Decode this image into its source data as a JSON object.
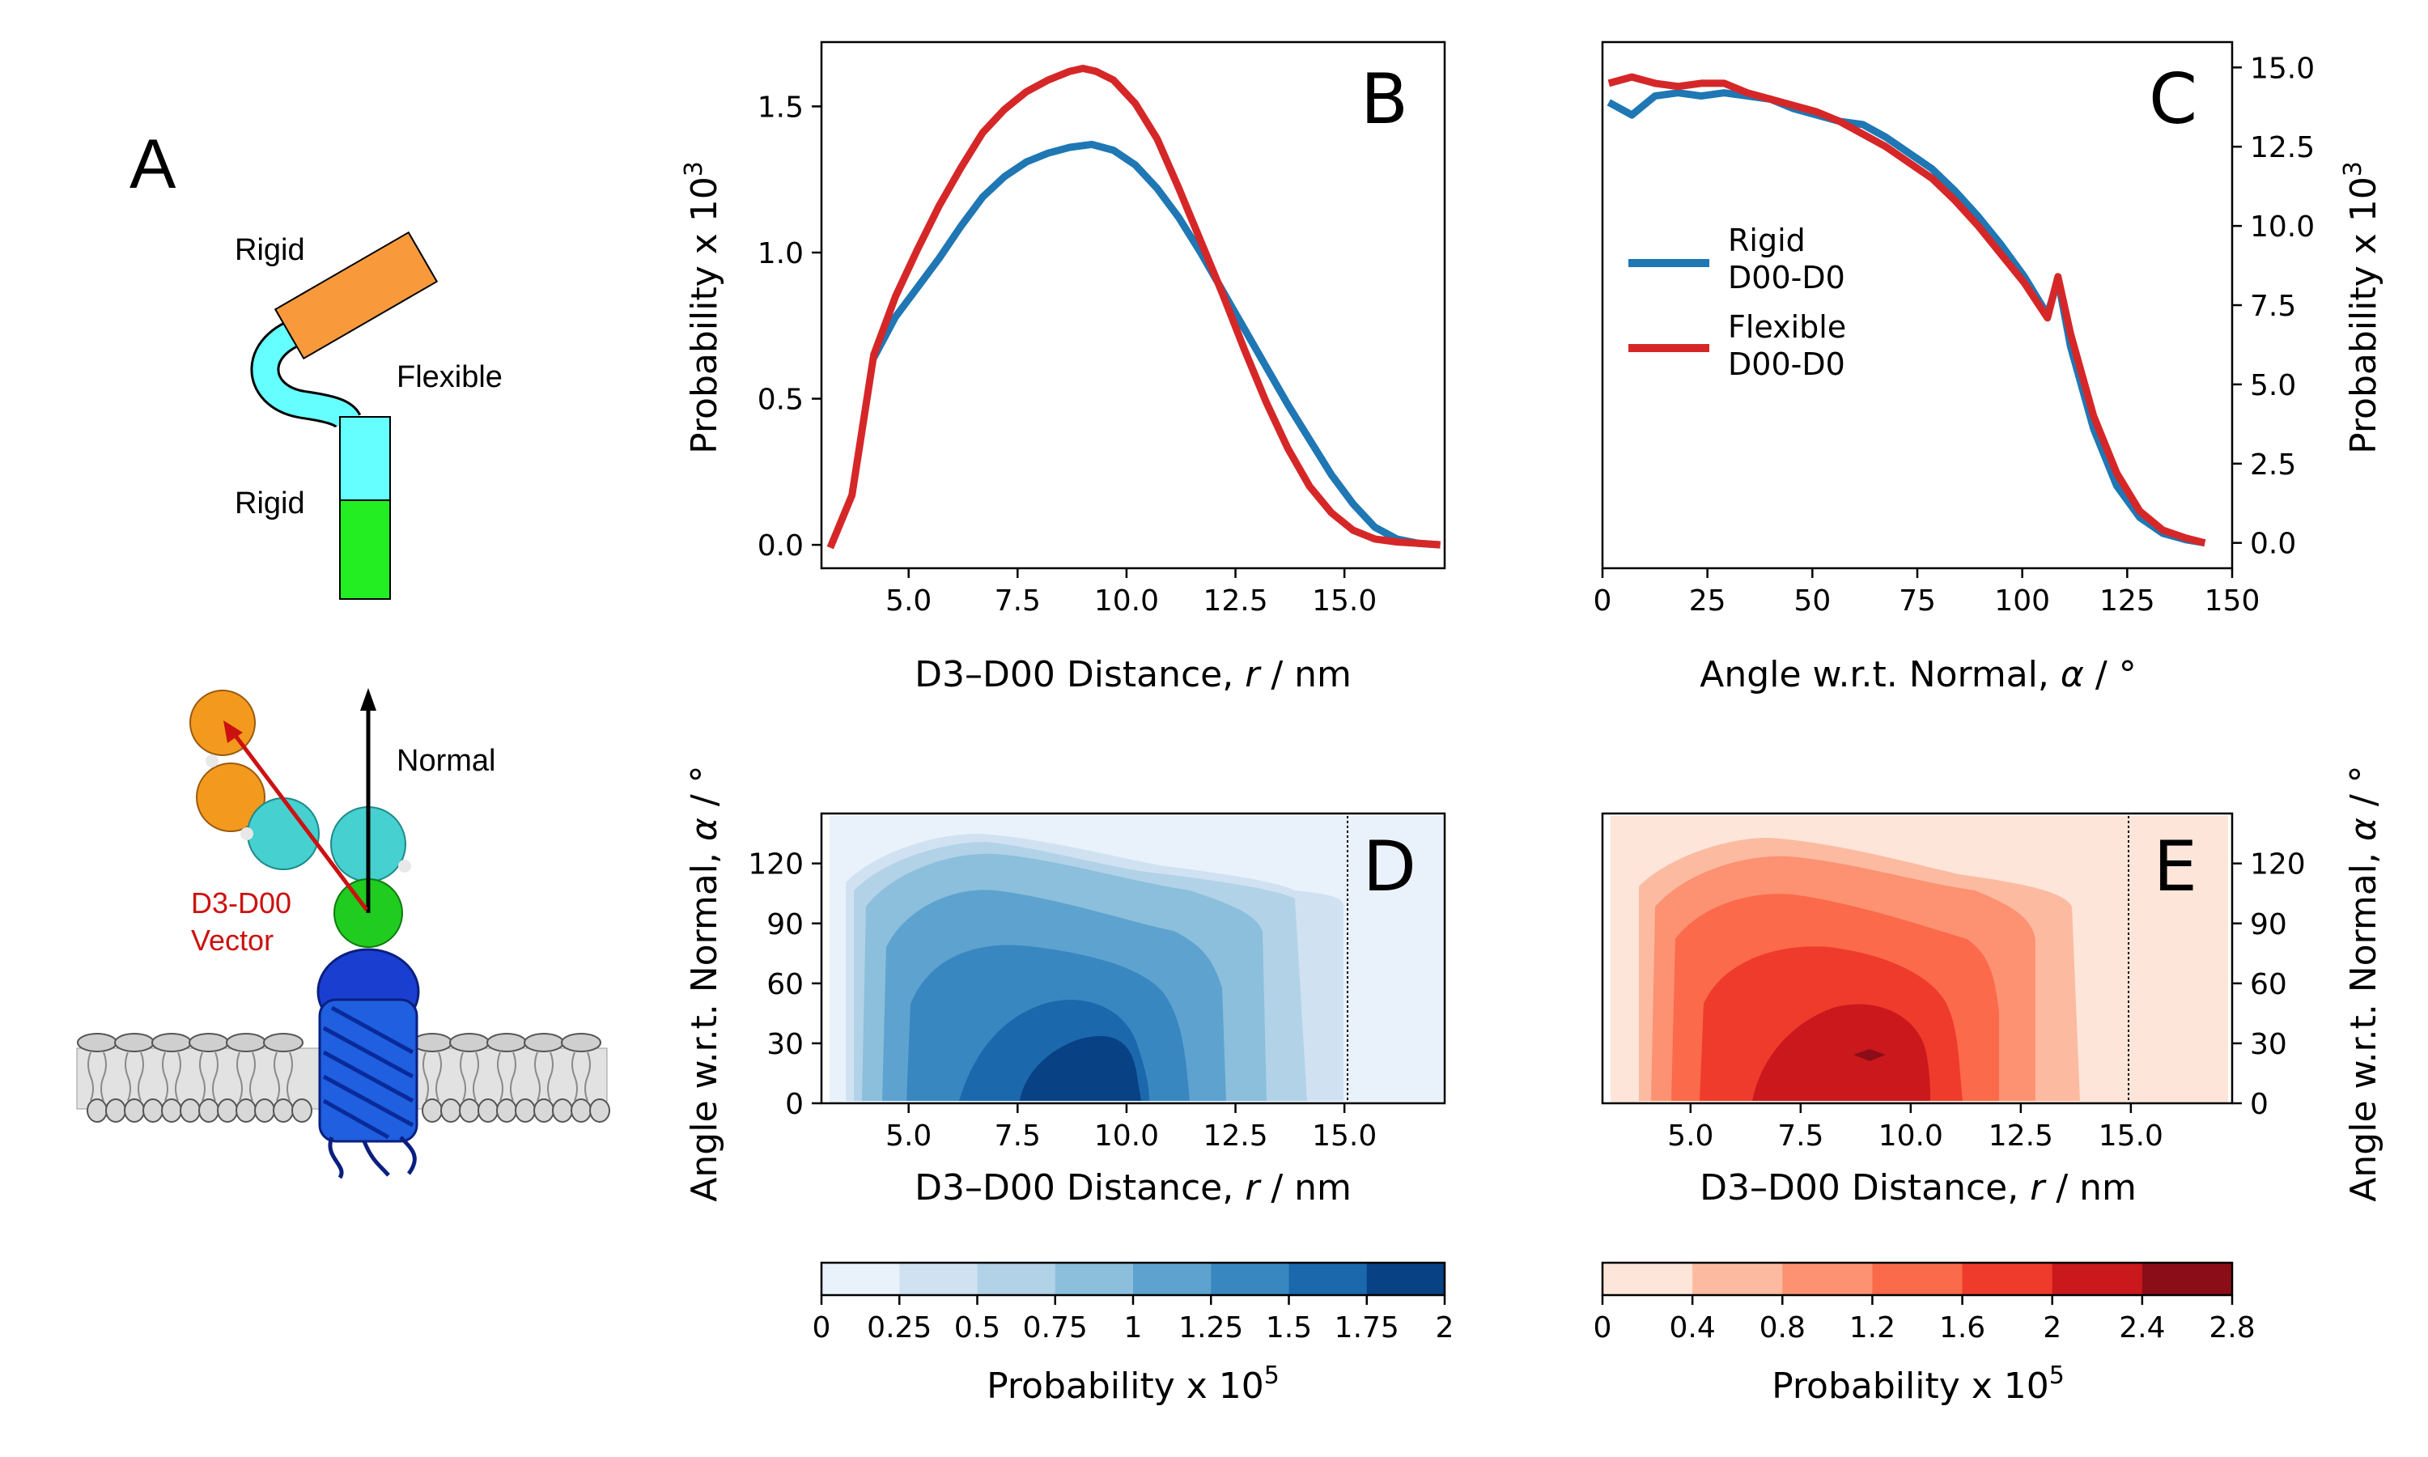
{
  "colors": {
    "rigid": "#1f77b4",
    "flexible": "#d62728",
    "orange": "#f89a3c",
    "cyan": "#66ffff",
    "green": "#22ee22",
    "membrane": "#cfcfcf",
    "protein": "#1a4fd6",
    "vector": "#cc1111"
  },
  "panelA": {
    "label": "A",
    "top_rigid": "Rigid",
    "flexible": "Flexible",
    "bottom_rigid": "Rigid",
    "normal": "Normal",
    "vector_label_1": "D3-D00",
    "vector_label_2": "Vector"
  },
  "chart_data": [
    {
      "panel": "B",
      "type": "line",
      "xlabel": "D3–D00 Distance, r  /  nm",
      "ylabel": "Probability x 10^3",
      "xlim": [
        3.0,
        17.3
      ],
      "ylim": [
        -0.08,
        1.72
      ],
      "xticks": [
        "5.0",
        "7.5",
        "10.0",
        "12.5",
        "15.0"
      ],
      "xtick_values": [
        5.0,
        7.5,
        10.0,
        12.5,
        15.0
      ],
      "yticks": [
        "0.0",
        "0.5",
        "1.0",
        "1.5"
      ],
      "ytick_values": [
        0.0,
        0.5,
        1.0,
        1.5
      ],
      "series": [
        {
          "name": "Rigid D00-D0",
          "x": [
            4.2,
            4.7,
            5.2,
            5.7,
            6.2,
            6.7,
            7.2,
            7.7,
            8.2,
            8.7,
            9.2,
            9.7,
            10.2,
            10.7,
            11.2,
            11.7,
            12.2,
            12.7,
            13.2,
            13.7,
            14.2,
            14.7,
            15.2,
            15.7,
            16.2,
            16.7,
            17.2
          ],
          "y": [
            0.64,
            0.78,
            0.88,
            0.98,
            1.09,
            1.19,
            1.26,
            1.31,
            1.34,
            1.36,
            1.37,
            1.35,
            1.3,
            1.22,
            1.12,
            1.0,
            0.87,
            0.74,
            0.61,
            0.48,
            0.36,
            0.24,
            0.14,
            0.06,
            0.02,
            0.005,
            0.0
          ]
        },
        {
          "name": "Flexible D00-D0",
          "x": [
            3.2,
            3.7,
            4.2,
            4.7,
            5.2,
            5.7,
            6.2,
            6.7,
            7.2,
            7.7,
            8.2,
            8.7,
            9.0,
            9.3,
            9.7,
            10.2,
            10.7,
            11.2,
            11.7,
            12.2,
            12.7,
            13.2,
            13.7,
            14.2,
            14.7,
            15.2,
            15.7,
            16.2,
            16.7,
            17.2
          ],
          "y": [
            -0.01,
            0.17,
            0.65,
            0.85,
            1.01,
            1.16,
            1.29,
            1.41,
            1.49,
            1.55,
            1.59,
            1.62,
            1.63,
            1.62,
            1.59,
            1.51,
            1.39,
            1.22,
            1.04,
            0.86,
            0.67,
            0.49,
            0.33,
            0.2,
            0.11,
            0.05,
            0.02,
            0.01,
            0.005,
            0.0
          ]
        }
      ]
    },
    {
      "panel": "C",
      "type": "line",
      "xlabel": "Angle w.r.t. Normal, α  /  °",
      "ylabel": "Probability x 10^3",
      "xlim": [
        0,
        150
      ],
      "ylim": [
        -0.8,
        15.8
      ],
      "xticks": [
        "0",
        "25",
        "50",
        "75",
        "100",
        "125",
        "150"
      ],
      "xtick_values": [
        0,
        25,
        50,
        75,
        100,
        125,
        150
      ],
      "yticks": [
        "0.0",
        "2.5",
        "5.0",
        "7.5",
        "10.0",
        "12.5",
        "15.0"
      ],
      "ytick_values": [
        0.0,
        2.5,
        5.0,
        7.5,
        10.0,
        12.5,
        15.0
      ],
      "legend_position": "center-left",
      "series": [
        {
          "name": "Rigid D00-D0",
          "x": [
            1.5,
            7,
            12.5,
            18,
            23.5,
            29,
            34.5,
            40,
            45.5,
            51,
            56.5,
            62,
            67.5,
            73,
            78.5,
            84,
            89.5,
            95,
            100.5,
            106,
            108.5,
            111.5,
            117,
            122.5,
            128,
            133.5,
            139,
            143.5
          ],
          "y": [
            13.9,
            13.5,
            14.1,
            14.2,
            14.1,
            14.2,
            14.1,
            14.0,
            13.7,
            13.5,
            13.3,
            13.2,
            12.8,
            12.3,
            11.8,
            11.1,
            10.3,
            9.4,
            8.4,
            7.2,
            8.3,
            6.2,
            3.6,
            1.8,
            0.8,
            0.3,
            0.1,
            0.0
          ]
        },
        {
          "name": "Flexible D00-D0",
          "x": [
            1.5,
            7,
            12.5,
            18,
            23.5,
            29,
            34.5,
            40,
            45.5,
            51,
            56.5,
            62,
            67.5,
            73,
            78.5,
            84,
            89.5,
            95,
            100.5,
            106,
            108.5,
            111.5,
            117,
            122.5,
            128,
            133.5,
            139,
            143.5
          ],
          "y": [
            14.5,
            14.7,
            14.5,
            14.4,
            14.5,
            14.5,
            14.2,
            14.0,
            13.8,
            13.6,
            13.3,
            12.9,
            12.5,
            12.0,
            11.5,
            10.8,
            10.0,
            9.1,
            8.2,
            7.1,
            8.4,
            6.6,
            4.0,
            2.2,
            1.0,
            0.4,
            0.15,
            0.0
          ]
        }
      ],
      "legend": [
        {
          "line1": "Rigid",
          "line2": "D00-D0"
        },
        {
          "line1": "Flexible",
          "line2": "D00-D0"
        }
      ]
    },
    {
      "panel": "D",
      "type": "heatmap",
      "xlabel": "D3–D00 Distance, r  /  nm",
      "ylabel": "Angle w.r.t. Normal, α  /  °",
      "xlim": [
        3.0,
        17.3
      ],
      "ylim": [
        0,
        145
      ],
      "xticks": [
        "5.0",
        "7.5",
        "10.0",
        "12.5",
        "15.0"
      ],
      "xtick_values": [
        5.0,
        7.5,
        10.0,
        12.5,
        15.0
      ],
      "yticks": [
        "0",
        "30",
        "60",
        "90",
        "120"
      ],
      "ytick_values": [
        0,
        30,
        60,
        90,
        120
      ],
      "cutoff_line_x": 15.1,
      "colorbar": {
        "label": "Probability x 10^5",
        "ticks": [
          "0",
          "0.25",
          "0.5",
          "0.75",
          "1",
          "1.25",
          "1.5",
          "1.75",
          "2"
        ],
        "colors": [
          "#e9f2fb",
          "#d0e2f2",
          "#b2d2e8",
          "#8bbfdc",
          "#5ea3cf",
          "#3987c0",
          "#1b68ad",
          "#084184"
        ]
      }
    },
    {
      "panel": "E",
      "type": "heatmap",
      "xlabel": "D3–D00 Distance, r  /  nm",
      "ylabel": "Angle w.r.t. Normal, α  /  °",
      "xlim": [
        3.0,
        17.3
      ],
      "ylim": [
        0,
        145
      ],
      "xticks": [
        "5.0",
        "7.5",
        "10.0",
        "12.5",
        "15.0"
      ],
      "xtick_values": [
        5.0,
        7.5,
        10.0,
        12.5,
        15.0
      ],
      "yticks": [
        "0",
        "30",
        "60",
        "90",
        "120"
      ],
      "ytick_values": [
        0,
        30,
        60,
        90,
        120
      ],
      "cutoff_line_x": 15.1,
      "colorbar": {
        "label": "Probability x 10^5",
        "ticks": [
          "0",
          "0.4",
          "0.8",
          "1.2",
          "1.6",
          "2",
          "2.4",
          "2.8"
        ],
        "colors": [
          "#fde5d9",
          "#fcbba1",
          "#fc9272",
          "#fb6a4a",
          "#ef3b2c",
          "#cb181d",
          "#8b0d17"
        ]
      }
    }
  ]
}
